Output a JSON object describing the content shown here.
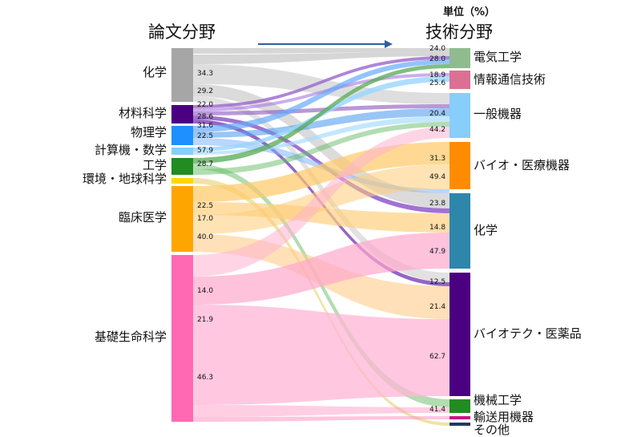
{
  "header": {
    "left_title": "論文分野",
    "right_title": "技術分野",
    "unit": "単位（%）"
  },
  "left_nodes": [
    {
      "label": "化学",
      "color": "#a6a6a6"
    },
    {
      "label": "材料科学",
      "color": "#4b0082"
    },
    {
      "label": "物理学",
      "color": "#1e90ff"
    },
    {
      "label": "計算機・数学",
      "color": "#87cefa"
    },
    {
      "label": "工学",
      "color": "#228b22"
    },
    {
      "label": "環境・地球科学",
      "color": "#ffd700"
    },
    {
      "label": "臨床医学",
      "color": "#ffa500"
    },
    {
      "label": "基礎生命科学",
      "color": "#ff69b4"
    }
  ],
  "right_nodes": [
    {
      "label": "電気工学",
      "color": "#8fbc8f"
    },
    {
      "label": "情報通信技術",
      "color": "#db7093"
    },
    {
      "label": "一般機器",
      "color": "#87cefa"
    },
    {
      "label": "バイオ・医療機器",
      "color": "#ff8c00"
    },
    {
      "label": "化学",
      "color": "#2e86ab"
    },
    {
      "label": "バイオテク・医薬品",
      "color": "#4b0082"
    },
    {
      "label": "機械工学",
      "color": "#228b22"
    },
    {
      "label": "輸送用機器",
      "color": "#c71585"
    },
    {
      "label": "その他",
      "color": "#1f3a5f"
    }
  ],
  "left_values": {
    "化学": [
      "34.3",
      "29.2"
    ],
    "材料科学": [
      "22.0",
      "28.6"
    ],
    "物理学": [
      "31.6",
      "22.5"
    ],
    "計算機・数学": [
      "57.9"
    ],
    "工学": [
      "28.7"
    ],
    "臨床医学": [
      "22.5",
      "17.0",
      "40.0"
    ],
    "基礎生命科学": [
      "14.0",
      "21.9",
      "46.3"
    ]
  },
  "right_values": {
    "電気工学": [
      "24.0",
      "28.0"
    ],
    "情報通信技術": [
      "18.9",
      "25.6"
    ],
    "一般機器": [
      "20.4",
      "44.2"
    ],
    "バイオ・医療機器": [
      "31.3",
      "49.4"
    ],
    "化学": [
      "23.8",
      "14.8",
      "47.9"
    ],
    "バイオテク・医薬品": [
      "12.5",
      "21.4",
      "62.7"
    ],
    "機械工学": [
      "41.4"
    ]
  }
}
